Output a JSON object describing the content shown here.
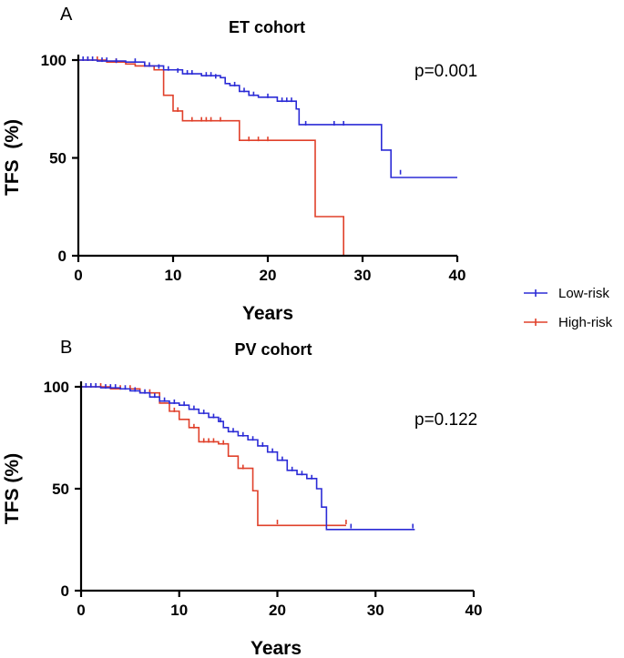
{
  "colors": {
    "low": "#2b2bd6",
    "high": "#e0402a"
  },
  "legend": [
    "Low-risk",
    "High-risk"
  ],
  "chart_data": [
    {
      "type": "line",
      "panel": "A",
      "title": "ET cohort",
      "xlabel": "Years",
      "ylabel": "TFS  (%)",
      "xlim": [
        0,
        40
      ],
      "ylim": [
        0,
        100
      ],
      "xticks": [
        0,
        10,
        20,
        30,
        40
      ],
      "yticks": [
        0,
        50,
        100
      ],
      "annotation": "p=0.001",
      "series": [
        {
          "name": "Low-risk",
          "steps": [
            [
              0,
              100
            ],
            [
              2,
              99.5
            ],
            [
              5,
              99
            ],
            [
              7,
              97
            ],
            [
              9,
              95
            ],
            [
              11,
              93
            ],
            [
              13,
              92
            ],
            [
              15,
              91
            ],
            [
              15.5,
              88
            ],
            [
              16,
              87
            ],
            [
              17,
              84
            ],
            [
              18,
              82
            ],
            [
              19,
              81
            ],
            [
              21,
              79
            ],
            [
              23,
              75
            ],
            [
              23.3,
              67
            ],
            [
              31,
              67
            ],
            [
              32,
              54
            ],
            [
              33,
              40
            ],
            [
              40,
              40
            ]
          ],
          "censors": [
            [
              0.5,
              100
            ],
            [
              1,
              100
            ],
            [
              1.5,
              100
            ],
            [
              2.5,
              99.5
            ],
            [
              3,
              99.5
            ],
            [
              4,
              99
            ],
            [
              6,
              99
            ],
            [
              7.5,
              97
            ],
            [
              8.5,
              96
            ],
            [
              9.5,
              95
            ],
            [
              10.5,
              94
            ],
            [
              11.5,
              93
            ],
            [
              12,
              93
            ],
            [
              13.5,
              92
            ],
            [
              14,
              92
            ],
            [
              14.5,
              91
            ],
            [
              16.5,
              87
            ],
            [
              17.5,
              84
            ],
            [
              18.5,
              82
            ],
            [
              20,
              81
            ],
            [
              21.5,
              79
            ],
            [
              22,
              79
            ],
            [
              22.5,
              79
            ],
            [
              24,
              67
            ],
            [
              27,
              67
            ],
            [
              28,
              67
            ],
            [
              34,
              42
            ]
          ]
        },
        {
          "name": "High-risk",
          "steps": [
            [
              0,
              100
            ],
            [
              3,
              99
            ],
            [
              5,
              98
            ],
            [
              6,
              97
            ],
            [
              8,
              95
            ],
            [
              9,
              82
            ],
            [
              10,
              74
            ],
            [
              11,
              69
            ],
            [
              17,
              59
            ],
            [
              25,
              20
            ],
            [
              28,
              0
            ]
          ],
          "censors": [
            [
              1,
              100
            ],
            [
              2,
              100
            ],
            [
              4,
              99
            ],
            [
              7,
              97
            ],
            [
              10.5,
              74
            ],
            [
              12,
              69
            ],
            [
              13,
              69
            ],
            [
              13.5,
              69
            ],
            [
              14,
              69
            ],
            [
              15,
              69
            ],
            [
              18,
              59
            ],
            [
              19,
              59
            ],
            [
              20,
              59
            ]
          ]
        }
      ]
    },
    {
      "type": "line",
      "panel": "B",
      "title": "PV cohort",
      "xlabel": "Years",
      "ylabel": "TFS (%)",
      "xlim": [
        0,
        40
      ],
      "ylim": [
        0,
        100
      ],
      "xticks": [
        0,
        10,
        20,
        30,
        40
      ],
      "yticks": [
        0,
        50,
        100
      ],
      "annotation": "p=0.122",
      "series": [
        {
          "name": "Low-risk",
          "steps": [
            [
              0,
              100
            ],
            [
              2,
              99.5
            ],
            [
              4,
              99
            ],
            [
              5,
              98
            ],
            [
              6,
              97
            ],
            [
              7,
              95
            ],
            [
              8,
              93
            ],
            [
              9,
              92
            ],
            [
              10,
              91
            ],
            [
              11,
              89
            ],
            [
              12,
              87
            ],
            [
              13,
              85
            ],
            [
              14,
              83
            ],
            [
              14.5,
              80
            ],
            [
              15,
              78
            ],
            [
              16,
              76
            ],
            [
              17,
              74
            ],
            [
              18,
              71
            ],
            [
              19,
              68
            ],
            [
              20,
              64
            ],
            [
              21,
              59
            ],
            [
              22,
              57
            ],
            [
              23,
              55
            ],
            [
              24,
              50
            ],
            [
              24.5,
              41
            ],
            [
              25,
              30
            ],
            [
              34,
              30
            ]
          ],
          "censors": [
            [
              0.5,
              100
            ],
            [
              1,
              100
            ],
            [
              1.5,
              100
            ],
            [
              2.5,
              99.5
            ],
            [
              3,
              99.5
            ],
            [
              3.5,
              99.5
            ],
            [
              4.5,
              99
            ],
            [
              5.5,
              98
            ],
            [
              6.5,
              97
            ],
            [
              7.5,
              95
            ],
            [
              8.5,
              93
            ],
            [
              9.5,
              92
            ],
            [
              10.5,
              91
            ],
            [
              11.5,
              89
            ],
            [
              12.5,
              87
            ],
            [
              13.5,
              85
            ],
            [
              14.2,
              83
            ],
            [
              15.5,
              78
            ],
            [
              16.5,
              76
            ],
            [
              17.5,
              74
            ],
            [
              18.5,
              71
            ],
            [
              19.5,
              68
            ],
            [
              20.5,
              64
            ],
            [
              21.5,
              59
            ],
            [
              22.5,
              57
            ],
            [
              23.5,
              55
            ],
            [
              27.5,
              31
            ],
            [
              33.8,
              31
            ]
          ]
        },
        {
          "name": "High-risk",
          "steps": [
            [
              0,
              100
            ],
            [
              3,
              99
            ],
            [
              6,
              97
            ],
            [
              8,
              92
            ],
            [
              9,
              88
            ],
            [
              10,
              84
            ],
            [
              11,
              80
            ],
            [
              12,
              73
            ],
            [
              14,
              72
            ],
            [
              15,
              66
            ],
            [
              16,
              60
            ],
            [
              17,
              60
            ],
            [
              17.5,
              49
            ],
            [
              18,
              32
            ],
            [
              27,
              32
            ]
          ],
          "censors": [
            [
              1,
              100
            ],
            [
              2,
              100
            ],
            [
              4,
              99
            ],
            [
              5,
              99
            ],
            [
              7,
              97
            ],
            [
              9.5,
              88
            ],
            [
              11.5,
              80
            ],
            [
              12.5,
              73
            ],
            [
              13,
              73
            ],
            [
              13.5,
              73
            ],
            [
              14.5,
              72
            ],
            [
              16.5,
              60
            ],
            [
              20,
              33
            ],
            [
              27,
              33
            ]
          ]
        }
      ]
    }
  ]
}
